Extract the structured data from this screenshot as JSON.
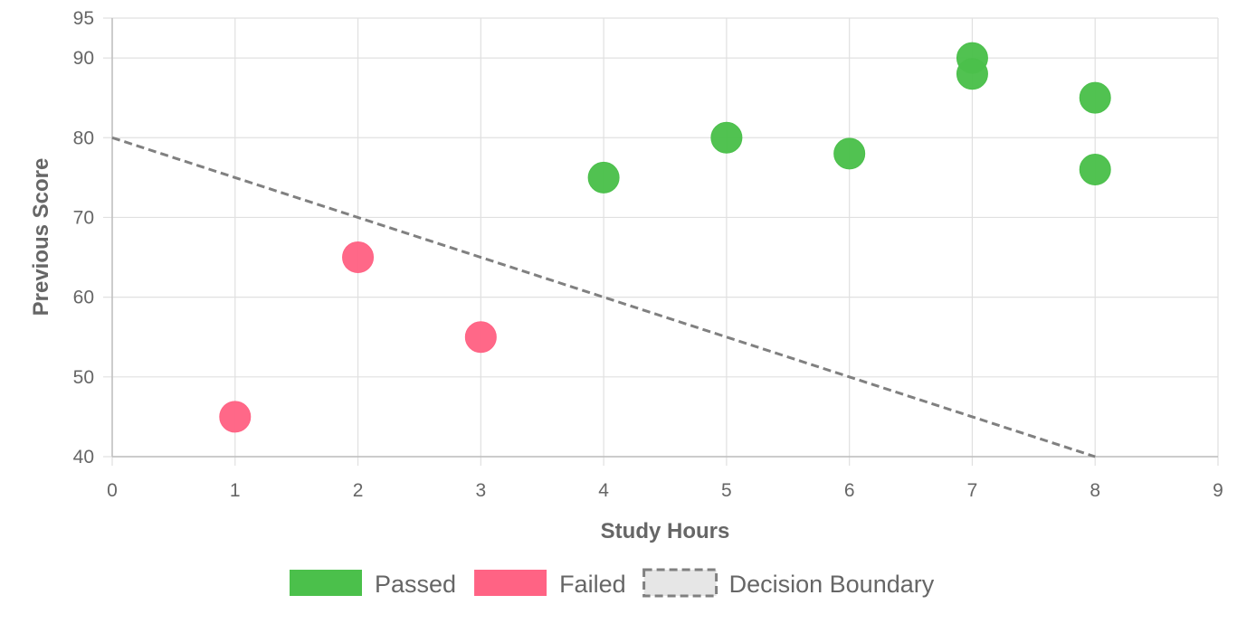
{
  "chart_data": {
    "type": "scatter",
    "xlabel": "Study Hours",
    "ylabel": "Previous Score",
    "xlim": [
      0,
      9
    ],
    "ylim": [
      40,
      95
    ],
    "x_ticks": [
      0,
      1,
      2,
      3,
      4,
      5,
      6,
      7,
      8,
      9
    ],
    "y_ticks": [
      40,
      50,
      60,
      70,
      80,
      90,
      95
    ],
    "grid": true,
    "legend_position": "bottom",
    "series": [
      {
        "name": "Passed",
        "color": "#4bc04b",
        "points": [
          {
            "x": 4,
            "y": 75
          },
          {
            "x": 5,
            "y": 80
          },
          {
            "x": 6,
            "y": 78
          },
          {
            "x": 7,
            "y": 90
          },
          {
            "x": 7,
            "y": 88
          },
          {
            "x": 8,
            "y": 85
          },
          {
            "x": 8,
            "y": 76
          }
        ]
      },
      {
        "name": "Failed",
        "color": "#ff6384",
        "points": [
          {
            "x": 1,
            "y": 45
          },
          {
            "x": 2,
            "y": 65
          },
          {
            "x": 3,
            "y": 55
          }
        ]
      }
    ],
    "lines": [
      {
        "name": "Decision Boundary",
        "color": "#808080",
        "style": "dashed",
        "points": [
          {
            "x": 0,
            "y": 80
          },
          {
            "x": 8,
            "y": 40
          }
        ]
      }
    ]
  }
}
